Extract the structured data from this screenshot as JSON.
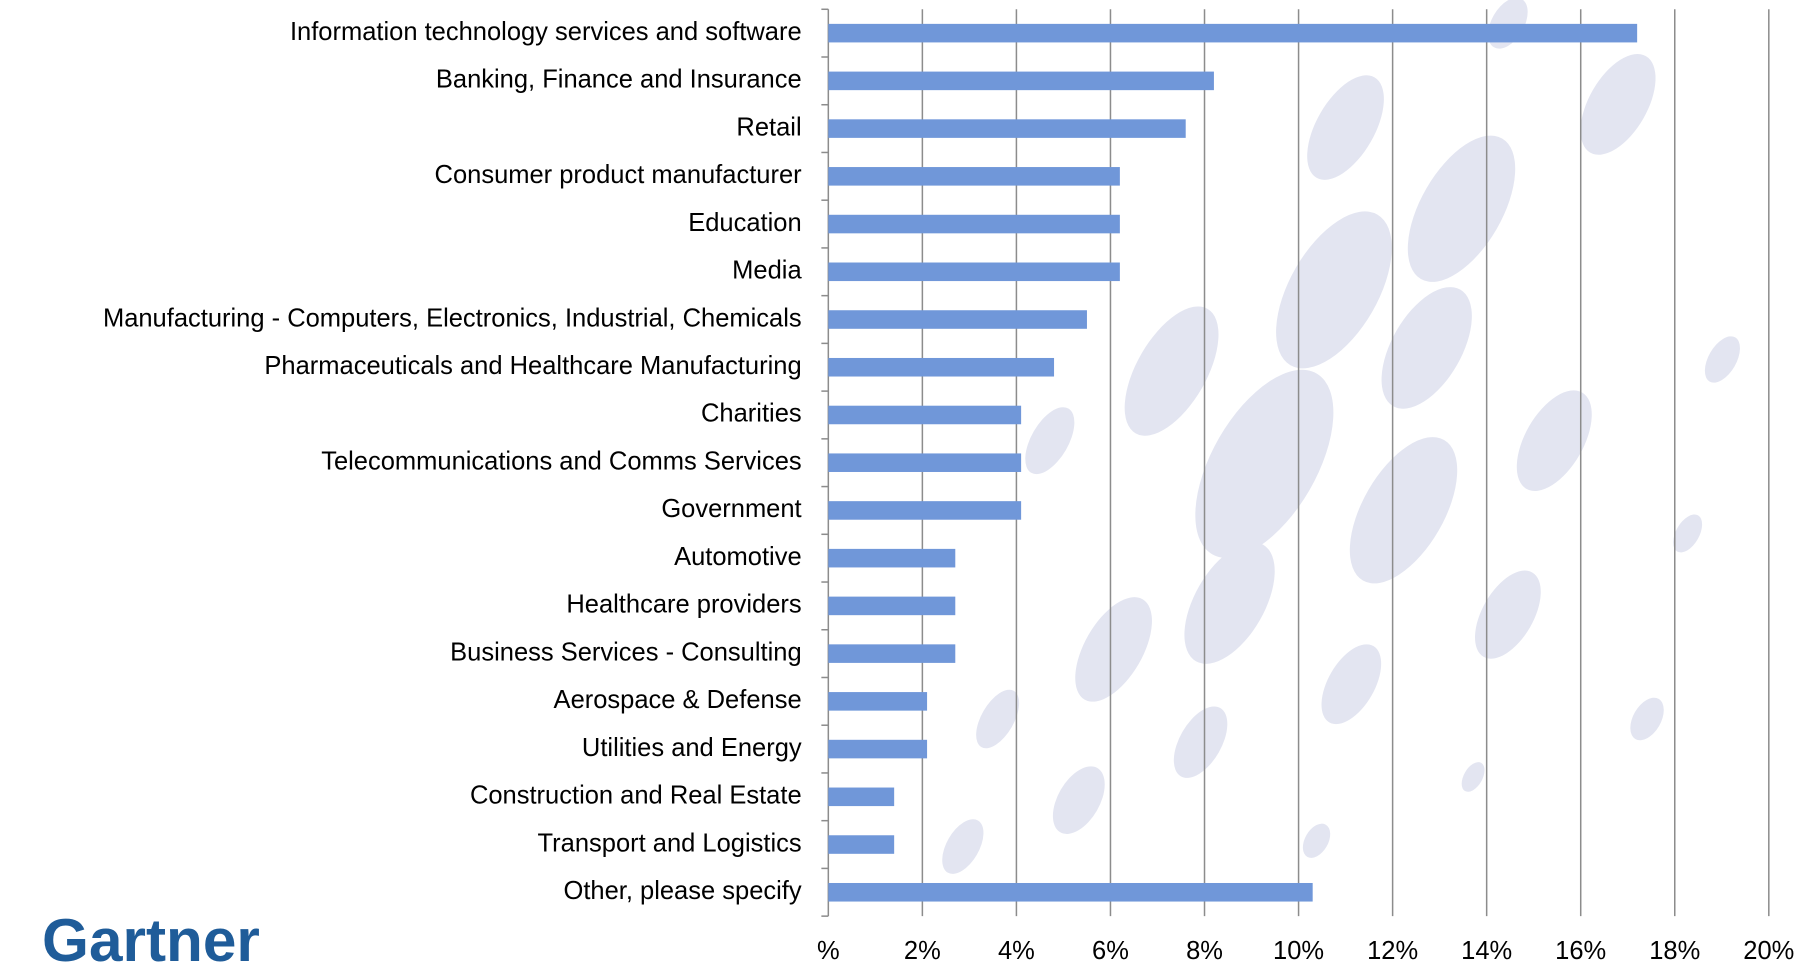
{
  "chart_data": {
    "type": "hbar",
    "categories": [
      "Information technology services and software",
      "Banking, Finance and Insurance",
      "Retail",
      "Consumer product manufacturer",
      "Education",
      "Media",
      "Manufacturing - Computers, Electronics, Industrial, Chemicals",
      "Pharmaceuticals and Healthcare Manufacturing",
      "Charities",
      "Telecommunications and Comms Services",
      "Government",
      "Automotive",
      "Healthcare providers ",
      "Business Services - Consulting",
      "Aerospace & Defense",
      "Utilities and Energy",
      "Construction and Real Estate",
      "Transport and Logistics",
      "Other, please specify"
    ],
    "values": [
      17.2,
      8.2,
      7.6,
      6.2,
      6.2,
      6.2,
      5.5,
      4.8,
      4.1,
      4.1,
      4.1,
      2.7,
      2.7,
      2.7,
      2.1,
      2.1,
      1.4,
      1.4,
      10.3
    ],
    "color": "#7097d9",
    "xlim": [
      0,
      20
    ],
    "xticks": [
      {
        "value": 0,
        "label": "%"
      },
      {
        "value": 2,
        "label": "2%"
      },
      {
        "value": 4,
        "label": "4%"
      },
      {
        "value": 6,
        "label": "6%"
      },
      {
        "value": 8,
        "label": "8%"
      },
      {
        "value": 10,
        "label": "10%"
      },
      {
        "value": 12,
        "label": "12%"
      },
      {
        "value": 14,
        "label": "14%"
      },
      {
        "value": 16,
        "label": "16%"
      },
      {
        "value": 18,
        "label": "18%"
      },
      {
        "value": 20,
        "label": "20%"
      }
    ],
    "grid": true
  },
  "logo": "Gartner"
}
